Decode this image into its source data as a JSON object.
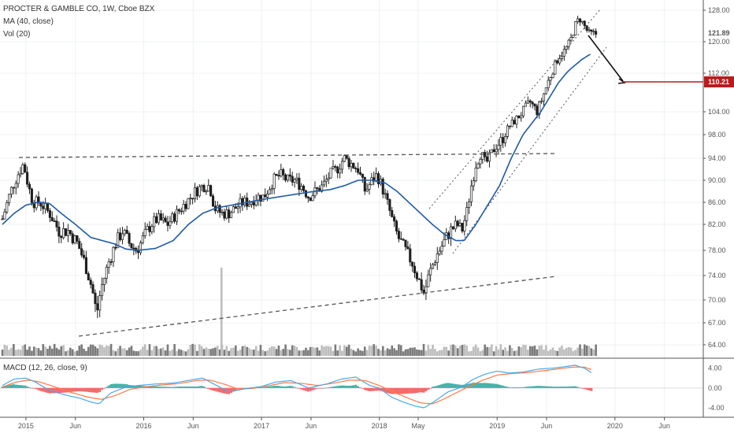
{
  "legend": {
    "title": "PROCTER & GAMBLE CO, 1W, Cboe BZX",
    "ma": "MA (40, close)",
    "vol": "Vol (20)",
    "macd": "MACD (12, 26, close, 9)"
  },
  "colors": {
    "up": "#1f1f1f",
    "down": "#1f1f1f",
    "ma": "#1e5aa8",
    "macd_line": "#4aa8e8",
    "signal_line": "#ff7a45",
    "hist_pos": "#26a69a",
    "hist_neg": "#ef5350",
    "target": "#b71c1c",
    "vol": "#7a7a7a"
  },
  "chart_data": {
    "type": "candlestick",
    "x_axis": {
      "labels": [
        "2015",
        "Jun",
        "2016",
        "Jun",
        "2017",
        "Jun",
        "2018",
        "May",
        "2019",
        "Jun",
        "2020",
        "Jun"
      ],
      "times": [
        2015.0,
        2015.42,
        2016.0,
        2016.42,
        2017.0,
        2017.42,
        2018.0,
        2018.33,
        2019.0,
        2019.42,
        2020.0,
        2020.42
      ],
      "range": [
        2014.78,
        2020.75
      ]
    },
    "price_axis": {
      "ticks": [
        "128.00",
        "120.00",
        "112.00",
        "104.00",
        "98.00",
        "94.00",
        "90.00",
        "86.00",
        "82.00",
        "78.00",
        "74.00",
        "70.00",
        "67.00",
        "64.00"
      ],
      "values": [
        128,
        120,
        112,
        104,
        98,
        94,
        90,
        86,
        82,
        78,
        74,
        70,
        67,
        64
      ],
      "last_price": "121.89",
      "target_price": "110.21"
    },
    "macd_axis": {
      "ticks": [
        "4.00",
        "0.00",
        "-4.00"
      ],
      "values": [
        4,
        0,
        -4
      ],
      "range": [
        -4.3,
        5.2
      ]
    },
    "price_anchors": [
      [
        2014.8,
        83
      ],
      [
        2014.87,
        88
      ],
      [
        2014.93,
        91
      ],
      [
        2014.98,
        93
      ],
      [
        2015.02,
        89
      ],
      [
        2015.06,
        86
      ],
      [
        2015.12,
        86
      ],
      [
        2015.2,
        84
      ],
      [
        2015.28,
        81
      ],
      [
        2015.36,
        81
      ],
      [
        2015.44,
        79
      ],
      [
        2015.5,
        76
      ],
      [
        2015.56,
        72
      ],
      [
        2015.6,
        68
      ],
      [
        2015.64,
        72
      ],
      [
        2015.7,
        76
      ],
      [
        2015.76,
        79
      ],
      [
        2015.82,
        81
      ],
      [
        2015.88,
        79
      ],
      [
        2015.94,
        78
      ],
      [
        2016.0,
        80
      ],
      [
        2016.06,
        82
      ],
      [
        2016.12,
        83
      ],
      [
        2016.2,
        82
      ],
      [
        2016.28,
        84
      ],
      [
        2016.36,
        86
      ],
      [
        2016.44,
        88
      ],
      [
        2016.5,
        89
      ],
      [
        2016.56,
        89
      ],
      [
        2016.6,
        85
      ],
      [
        2016.66,
        84
      ],
      [
        2016.72,
        84
      ],
      [
        2016.78,
        85
      ],
      [
        2016.84,
        86
      ],
      [
        2016.9,
        86
      ],
      [
        2016.96,
        87
      ],
      [
        2017.02,
        87
      ],
      [
        2017.1,
        90
      ],
      [
        2017.16,
        91
      ],
      [
        2017.22,
        90
      ],
      [
        2017.28,
        90
      ],
      [
        2017.34,
        89
      ],
      [
        2017.4,
        87
      ],
      [
        2017.46,
        88
      ],
      [
        2017.52,
        89
      ],
      [
        2017.58,
        91
      ],
      [
        2017.64,
        92
      ],
      [
        2017.7,
        94
      ],
      [
        2017.76,
        93
      ],
      [
        2017.82,
        92
      ],
      [
        2017.88,
        88
      ],
      [
        2017.94,
        90
      ],
      [
        2017.98,
        91
      ],
      [
        2018.02,
        89
      ],
      [
        2018.08,
        85
      ],
      [
        2018.12,
        82
      ],
      [
        2018.16,
        80
      ],
      [
        2018.22,
        78
      ],
      [
        2018.28,
        76
      ],
      [
        2018.34,
        73
      ],
      [
        2018.38,
        71
      ],
      [
        2018.42,
        74
      ],
      [
        2018.48,
        77
      ],
      [
        2018.54,
        79
      ],
      [
        2018.6,
        81
      ],
      [
        2018.66,
        82
      ],
      [
        2018.7,
        81
      ],
      [
        2018.74,
        84
      ],
      [
        2018.78,
        89
      ],
      [
        2018.82,
        93
      ],
      [
        2018.86,
        95
      ],
      [
        2018.9,
        93
      ],
      [
        2018.94,
        94
      ],
      [
        2018.98,
        96
      ],
      [
        2019.04,
        97
      ],
      [
        2019.1,
        100
      ],
      [
        2019.16,
        102
      ],
      [
        2019.22,
        104
      ],
      [
        2019.28,
        106
      ],
      [
        2019.34,
        104
      ],
      [
        2019.4,
        108
      ],
      [
        2019.46,
        112
      ],
      [
        2019.52,
        116
      ],
      [
        2019.58,
        118
      ],
      [
        2019.62,
        120
      ],
      [
        2019.66,
        124
      ],
      [
        2019.7,
        126
      ],
      [
        2019.74,
        124
      ],
      [
        2019.78,
        122
      ],
      [
        2019.84,
        122
      ]
    ],
    "ma_anchors": [
      [
        2014.8,
        82
      ],
      [
        2014.9,
        84
      ],
      [
        2015.0,
        85.5
      ],
      [
        2015.1,
        86
      ],
      [
        2015.2,
        85.8
      ],
      [
        2015.3,
        84
      ],
      [
        2015.42,
        82
      ],
      [
        2015.55,
        80
      ],
      [
        2015.65,
        79.5
      ],
      [
        2015.75,
        79
      ],
      [
        2015.85,
        78.2
      ],
      [
        2015.95,
        78
      ],
      [
        2016.1,
        78.3
      ],
      [
        2016.25,
        79.5
      ],
      [
        2016.38,
        82
      ],
      [
        2016.5,
        84
      ],
      [
        2016.62,
        85
      ],
      [
        2016.75,
        85.5
      ],
      [
        2016.88,
        86
      ],
      [
        2017.0,
        86.5
      ],
      [
        2017.15,
        87
      ],
      [
        2017.3,
        87.5
      ],
      [
        2017.45,
        88
      ],
      [
        2017.58,
        88.3
      ],
      [
        2017.7,
        89
      ],
      [
        2017.82,
        90
      ],
      [
        2017.95,
        90
      ],
      [
        2018.05,
        89.5
      ],
      [
        2018.15,
        88
      ],
      [
        2018.25,
        86
      ],
      [
        2018.35,
        84
      ],
      [
        2018.45,
        82
      ],
      [
        2018.55,
        80.5
      ],
      [
        2018.65,
        79.5
      ],
      [
        2018.72,
        79.5
      ],
      [
        2018.82,
        82
      ],
      [
        2018.92,
        85.5
      ],
      [
        2019.02,
        89
      ],
      [
        2019.12,
        94
      ],
      [
        2019.22,
        98
      ],
      [
        2019.32,
        102
      ],
      [
        2019.42,
        106
      ],
      [
        2019.52,
        110
      ],
      [
        2019.62,
        113
      ],
      [
        2019.72,
        115.5
      ],
      [
        2019.8,
        117
      ]
    ],
    "vol_spike": {
      "time": 2016.66,
      "rel": 1.0
    },
    "macd_anchors": [
      [
        2014.8,
        0.5
      ],
      [
        2014.9,
        1.8
      ],
      [
        2015.0,
        2.0
      ],
      [
        2015.08,
        1.2
      ],
      [
        2015.2,
        -0.5
      ],
      [
        2015.35,
        -1.5
      ],
      [
        2015.45,
        -2.0
      ],
      [
        2015.55,
        -2.8
      ],
      [
        2015.62,
        -3.2
      ],
      [
        2015.72,
        -1.0
      ],
      [
        2015.85,
        0.2
      ],
      [
        2015.95,
        0.5
      ],
      [
        2016.1,
        0.8
      ],
      [
        2016.25,
        1.0
      ],
      [
        2016.4,
        1.6
      ],
      [
        2016.5,
        2.0
      ],
      [
        2016.62,
        0.5
      ],
      [
        2016.72,
        -0.8
      ],
      [
        2016.85,
        -0.2
      ],
      [
        2017.0,
        0.3
      ],
      [
        2017.12,
        1.2
      ],
      [
        2017.25,
        1.5
      ],
      [
        2017.4,
        0.0
      ],
      [
        2017.55,
        0.8
      ],
      [
        2017.68,
        1.8
      ],
      [
        2017.8,
        2.2
      ],
      [
        2017.92,
        0.5
      ],
      [
        2018.0,
        0.0
      ],
      [
        2018.1,
        -1.8
      ],
      [
        2018.2,
        -2.8
      ],
      [
        2018.3,
        -3.6
      ],
      [
        2018.38,
        -4.0
      ],
      [
        2018.48,
        -2.5
      ],
      [
        2018.58,
        -0.8
      ],
      [
        2018.7,
        0.2
      ],
      [
        2018.8,
        1.8
      ],
      [
        2018.9,
        2.8
      ],
      [
        2019.0,
        3.4
      ],
      [
        2019.1,
        3.0
      ],
      [
        2019.22,
        3.2
      ],
      [
        2019.35,
        3.8
      ],
      [
        2019.48,
        4.0
      ],
      [
        2019.58,
        4.3
      ],
      [
        2019.66,
        4.6
      ],
      [
        2019.74,
        4.0
      ],
      [
        2019.8,
        3.1
      ]
    ],
    "signal_anchors": [
      [
        2014.8,
        0.2
      ],
      [
        2014.92,
        1.2
      ],
      [
        2015.02,
        1.6
      ],
      [
        2015.12,
        1.2
      ],
      [
        2015.25,
        0.2
      ],
      [
        2015.4,
        -1.0
      ],
      [
        2015.52,
        -1.8
      ],
      [
        2015.64,
        -2.3
      ],
      [
        2015.76,
        -1.5
      ],
      [
        2015.88,
        -0.3
      ],
      [
        2016.0,
        0.2
      ],
      [
        2016.15,
        0.6
      ],
      [
        2016.3,
        0.9
      ],
      [
        2016.45,
        1.5
      ],
      [
        2016.56,
        1.6
      ],
      [
        2016.68,
        0.8
      ],
      [
        2016.8,
        -0.2
      ],
      [
        2016.92,
        -0.1
      ],
      [
        2017.05,
        0.4
      ],
      [
        2017.2,
        1.1
      ],
      [
        2017.35,
        0.9
      ],
      [
        2017.48,
        0.5
      ],
      [
        2017.62,
        1.0
      ],
      [
        2017.75,
        1.6
      ],
      [
        2017.88,
        1.5
      ],
      [
        2018.0,
        0.5
      ],
      [
        2018.12,
        -0.8
      ],
      [
        2018.24,
        -2.0
      ],
      [
        2018.35,
        -3.0
      ],
      [
        2018.45,
        -3.2
      ],
      [
        2018.55,
        -2.2
      ],
      [
        2018.65,
        -1.0
      ],
      [
        2018.76,
        0.3
      ],
      [
        2018.88,
        1.6
      ],
      [
        2019.0,
        2.6
      ],
      [
        2019.12,
        2.9
      ],
      [
        2019.26,
        3.1
      ],
      [
        2019.4,
        3.5
      ],
      [
        2019.54,
        3.9
      ],
      [
        2019.64,
        4.2
      ],
      [
        2019.74,
        4.2
      ],
      [
        2019.8,
        3.7
      ]
    ]
  }
}
